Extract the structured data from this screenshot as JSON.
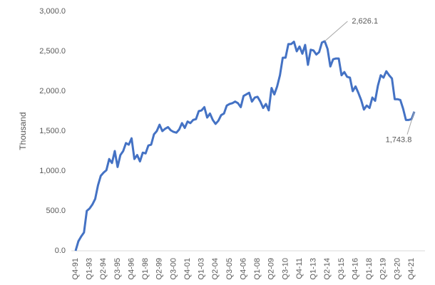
{
  "chart_data": {
    "type": "line",
    "y_label": "Thousand",
    "color": "#4472c4",
    "grid": false,
    "ylim": [
      0,
      3000
    ],
    "yticks": [
      {
        "value": 0,
        "label": "0.0"
      },
      {
        "value": 500,
        "label": "500.0"
      },
      {
        "value": 1000,
        "label": "1,000.0"
      },
      {
        "value": 1500,
        "label": "1,500.0"
      },
      {
        "value": 2000,
        "label": "2,000.0"
      },
      {
        "value": 2500,
        "label": "2,500.0"
      },
      {
        "value": 3000,
        "label": "3,000.0"
      }
    ],
    "categories": [
      "Q4-91",
      null,
      null,
      null,
      null,
      "Q1-93",
      null,
      null,
      null,
      null,
      "Q2-94",
      null,
      null,
      null,
      null,
      "Q3-95",
      null,
      null,
      null,
      null,
      "Q4-96",
      null,
      null,
      null,
      null,
      "Q1-98",
      null,
      null,
      null,
      null,
      "Q2-99",
      null,
      null,
      null,
      null,
      "Q3-00",
      null,
      null,
      null,
      null,
      "Q4-01",
      null,
      null,
      null,
      null,
      "Q1-03",
      null,
      null,
      null,
      null,
      "Q2-04",
      null,
      null,
      null,
      null,
      "Q3-05",
      null,
      null,
      null,
      null,
      "Q4-06",
      null,
      null,
      null,
      null,
      "Q1-08",
      null,
      null,
      null,
      null,
      "Q2-09",
      null,
      null,
      null,
      null,
      "Q3-10",
      null,
      null,
      null,
      null,
      "Q4-11",
      null,
      null,
      null,
      null,
      "Q1-13",
      null,
      null,
      null,
      null,
      "Q2-14",
      null,
      null,
      null,
      null,
      "Q3-15",
      null,
      null,
      null,
      null,
      "Q4-16",
      null,
      null,
      null,
      null,
      "Q1-18",
      null,
      null,
      null,
      null,
      "Q2-19",
      null,
      null,
      null,
      null,
      "Q3-20",
      null,
      null,
      null,
      null,
      "Q4-21",
      null
    ],
    "values": [
      0,
      120,
      180,
      230,
      500,
      530,
      580,
      650,
      820,
      940,
      980,
      1010,
      1150,
      1100,
      1250,
      1050,
      1200,
      1250,
      1350,
      1330,
      1410,
      1150,
      1200,
      1120,
      1230,
      1220,
      1320,
      1330,
      1460,
      1500,
      1580,
      1500,
      1530,
      1550,
      1510,
      1490,
      1480,
      1520,
      1600,
      1540,
      1620,
      1600,
      1640,
      1650,
      1750,
      1760,
      1800,
      1670,
      1720,
      1640,
      1590,
      1630,
      1700,
      1720,
      1820,
      1840,
      1850,
      1870,
      1850,
      1800,
      1940,
      1960,
      1980,
      1870,
      1920,
      1930,
      1870,
      1790,
      1840,
      1760,
      2040,
      1960,
      2060,
      2200,
      2420,
      2420,
      2590,
      2590,
      2620,
      2500,
      2560,
      2470,
      2580,
      2330,
      2520,
      2510,
      2460,
      2490,
      2610,
      2626.1,
      2530,
      2310,
      2400,
      2410,
      2410,
      2200,
      2240,
      2180,
      2170,
      2000,
      2060,
      1980,
      1890,
      1770,
      1820,
      1790,
      1920,
      1880,
      2070,
      2200,
      2170,
      2250,
      2200,
      2160,
      1900,
      1900,
      1890,
      1780,
      1640,
      1640,
      1650,
      1743.8
    ],
    "value_labels": [
      null,
      null,
      null,
      null,
      null,
      null,
      null,
      null,
      null,
      null,
      null,
      null,
      null,
      null,
      null,
      null,
      null,
      null,
      null,
      null,
      null,
      null,
      null,
      null,
      null,
      null,
      null,
      null,
      null,
      null,
      null,
      null,
      null,
      null,
      null,
      null,
      null,
      null,
      null,
      null,
      null,
      null,
      null,
      null,
      null,
      null,
      null,
      null,
      null,
      null,
      null,
      null,
      null,
      null,
      null,
      null,
      null,
      null,
      null,
      null,
      null,
      null,
      null,
      null,
      null,
      null,
      null,
      null,
      null,
      null,
      null,
      null,
      null,
      null,
      null,
      null,
      null,
      null,
      null,
      null,
      null,
      null,
      null,
      null,
      null,
      null,
      null,
      null,
      null,
      "2,626.1",
      null,
      null,
      null,
      null,
      null,
      null,
      null,
      null,
      null,
      null,
      null,
      null,
      null,
      null,
      null,
      null,
      null,
      null,
      null,
      null,
      null,
      null,
      null,
      null,
      null,
      null,
      null,
      null,
      null,
      null,
      null,
      "1,743.8"
    ]
  }
}
